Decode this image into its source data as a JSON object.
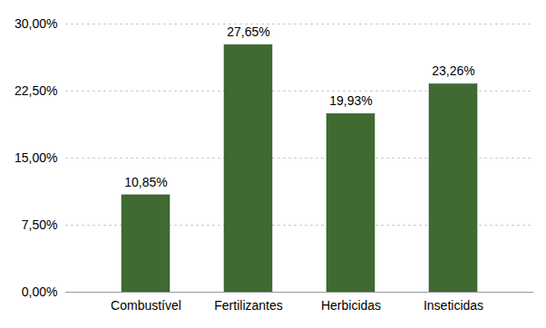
{
  "chart_data": {
    "type": "bar",
    "categories": [
      "Combustível",
      "Fertilizantes",
      "Herbicidas",
      "Inseticidas"
    ],
    "values": [
      10.85,
      27.65,
      19.93,
      23.26
    ],
    "value_labels": [
      "10,85%",
      "27,65%",
      "19,93%",
      "23,26%"
    ],
    "data_labels": true,
    "color": "#3f6b32",
    "ylim": [
      0,
      30
    ],
    "yticks": [
      {
        "value": 0,
        "label": "0,00%"
      },
      {
        "value": 7.5,
        "label": "7,50%"
      },
      {
        "value": 15,
        "label": "15,00%"
      },
      {
        "value": 22.5,
        "label": "22,50%"
      },
      {
        "value": 30,
        "label": "30,00%"
      }
    ],
    "grid": true
  }
}
